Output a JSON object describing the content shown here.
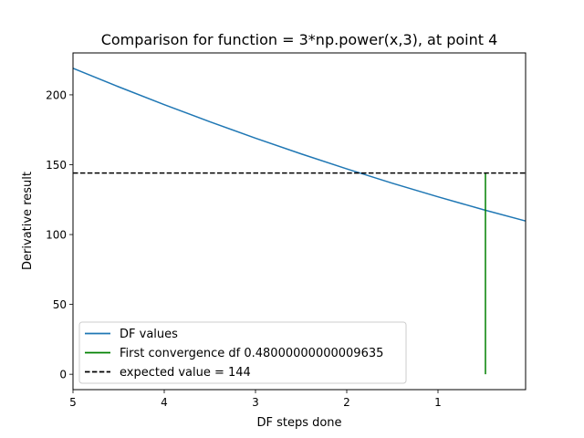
{
  "chart_data": {
    "type": "line",
    "title": "Comparison for function = 3*np.power(x,3), at point 4",
    "xlabel": "DF steps done",
    "ylabel": "Derivative result",
    "xlim": [
      5,
      0.04
    ],
    "ylim": [
      -11,
      230
    ],
    "x_inverted": true,
    "x_ticks": [
      5,
      4,
      3,
      2,
      1
    ],
    "x_tick_labels": [
      "5",
      "4",
      "3",
      "2",
      "1"
    ],
    "y_ticks": [
      0,
      50,
      100,
      150,
      200
    ],
    "y_tick_labels": [
      "0",
      "50",
      "100",
      "150",
      "200"
    ],
    "grid": false,
    "legend_position": "lower left",
    "series": [
      {
        "name": "DF values",
        "kind": "line",
        "color": "#1f77b4",
        "x": [
          5,
          4.5,
          4,
          3.5,
          3,
          2.5,
          2,
          1.5,
          1,
          0.5,
          0.04
        ],
        "y": [
          219,
          205.75,
          193,
          180.75,
          169,
          157.75,
          147,
          136.75,
          127,
          117.75,
          109.7
        ]
      },
      {
        "name": "First convergence df 0.48000000000009635",
        "kind": "vline",
        "color": "#008000",
        "x": 0.48000000000009635,
        "y_range": [
          0,
          144
        ]
      },
      {
        "name": "expected value = 144",
        "kind": "hline",
        "color": "#000000",
        "dashed": true,
        "y": 144
      }
    ]
  }
}
